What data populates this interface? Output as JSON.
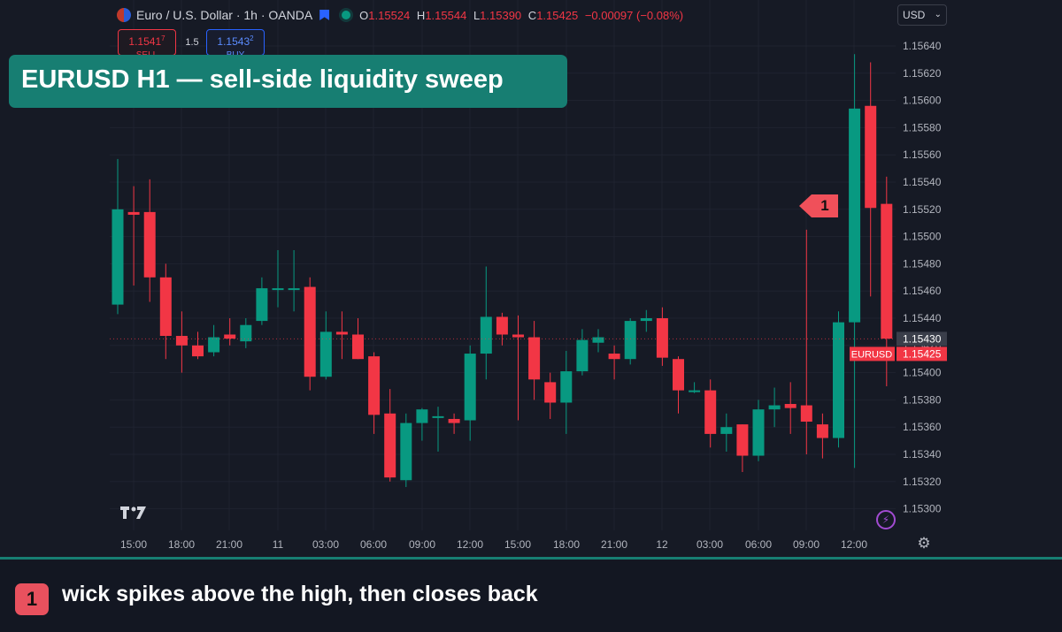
{
  "header": {
    "symbol": "Euro / U.S. Dollar · 1h · OANDA",
    "ohlc": [
      {
        "k": "O",
        "v": "1.15524"
      },
      {
        "k": "H",
        "v": "1.15544"
      },
      {
        "k": "L",
        "v": "1.15390"
      },
      {
        "k": "C",
        "v": "1.15425"
      }
    ],
    "change": "−0.00097 (−0.08%)"
  },
  "trade": {
    "sell_price": "1.1541",
    "sell_sup": "7",
    "sell_label": "SELL",
    "spread": "1.5",
    "buy_price": "1.1543",
    "buy_sup": "2",
    "buy_label": "BUY"
  },
  "currency": "USD",
  "title": "EURUSD H1  —  sell-side liquidity sweep",
  "annotation": {
    "number": "1",
    "text": "wick spikes above the high, then closes back"
  },
  "colors": {
    "up": "#089981",
    "down": "#f23645",
    "accent": "#177e72",
    "badge": "#f0505a"
  },
  "icons": {
    "logo": "tradingview-logo-icon",
    "bolt": "lightning-icon",
    "settings": "gear-icon",
    "bookmark": "bookmark-icon"
  },
  "chart_data": {
    "type": "candlestick",
    "x_ticks": [
      "15:00",
      "18:00",
      "21:00",
      "11",
      "03:00",
      "06:00",
      "09:00",
      "12:00",
      "15:00",
      "18:00",
      "21:00",
      "12",
      "03:00",
      "06:00",
      "09:00",
      "12:00"
    ],
    "y_ticks": [
      "1.15640",
      "1.15620",
      "1.15600",
      "1.15580",
      "1.15560",
      "1.15540",
      "1.15520",
      "1.15500",
      "1.15480",
      "1.15460",
      "1.15440",
      "1.15420",
      "1.15400",
      "1.15380",
      "1.15360",
      "1.15340",
      "1.15320",
      "1.15300"
    ],
    "ylim": [
      1.1529,
      1.1565
    ],
    "current_price_label": "1.15430",
    "last_price_tag": "EURUSD",
    "last_price": "1.15425",
    "candles": [
      {
        "o": 1.1545,
        "h": 1.15557,
        "l": 1.15443,
        "c": 1.1552
      },
      {
        "o": 1.15518,
        "h": 1.15537,
        "l": 1.15464,
        "c": 1.15516
      },
      {
        "o": 1.15518,
        "h": 1.15542,
        "l": 1.15452,
        "c": 1.1547
      },
      {
        "o": 1.1547,
        "h": 1.1548,
        "l": 1.1541,
        "c": 1.15427
      },
      {
        "o": 1.15427,
        "h": 1.15445,
        "l": 1.154,
        "c": 1.1542
      },
      {
        "o": 1.1542,
        "h": 1.1543,
        "l": 1.1541,
        "c": 1.15412
      },
      {
        "o": 1.15415,
        "h": 1.15435,
        "l": 1.15412,
        "c": 1.15426
      },
      {
        "o": 1.15428,
        "h": 1.1544,
        "l": 1.1542,
        "c": 1.15425
      },
      {
        "o": 1.15423,
        "h": 1.1544,
        "l": 1.15418,
        "c": 1.15435
      },
      {
        "o": 1.15438,
        "h": 1.1547,
        "l": 1.15435,
        "c": 1.15462
      },
      {
        "o": 1.15462,
        "h": 1.1549,
        "l": 1.15448,
        "c": 1.15462
      },
      {
        "o": 1.15462,
        "h": 1.1549,
        "l": 1.15445,
        "c": 1.15462
      },
      {
        "o": 1.15463,
        "h": 1.1547,
        "l": 1.15387,
        "c": 1.15397
      },
      {
        "o": 1.15397,
        "h": 1.15445,
        "l": 1.15395,
        "c": 1.1543
      },
      {
        "o": 1.1543,
        "h": 1.15445,
        "l": 1.1541,
        "c": 1.15428
      },
      {
        "o": 1.15428,
        "h": 1.1544,
        "l": 1.1541,
        "c": 1.1541
      },
      {
        "o": 1.15412,
        "h": 1.15415,
        "l": 1.15355,
        "c": 1.15369
      },
      {
        "o": 1.1537,
        "h": 1.15388,
        "l": 1.1532,
        "c": 1.15323
      },
      {
        "o": 1.15321,
        "h": 1.1537,
        "l": 1.15316,
        "c": 1.15363
      },
      {
        "o": 1.15363,
        "h": 1.15374,
        "l": 1.1535,
        "c": 1.15373
      },
      {
        "o": 1.15368,
        "h": 1.15375,
        "l": 1.15342,
        "c": 1.15368
      },
      {
        "o": 1.15366,
        "h": 1.1537,
        "l": 1.15355,
        "c": 1.15363
      },
      {
        "o": 1.15365,
        "h": 1.1542,
        "l": 1.1535,
        "c": 1.15414
      },
      {
        "o": 1.15414,
        "h": 1.15478,
        "l": 1.15395,
        "c": 1.15441
      },
      {
        "o": 1.15441,
        "h": 1.15444,
        "l": 1.1542,
        "c": 1.15428
      },
      {
        "o": 1.15428,
        "h": 1.15442,
        "l": 1.15365,
        "c": 1.15426
      },
      {
        "o": 1.15426,
        "h": 1.15438,
        "l": 1.1538,
        "c": 1.15395
      },
      {
        "o": 1.15393,
        "h": 1.154,
        "l": 1.15366,
        "c": 1.15378
      },
      {
        "o": 1.15378,
        "h": 1.15416,
        "l": 1.15355,
        "c": 1.15401
      },
      {
        "o": 1.15401,
        "h": 1.15432,
        "l": 1.15398,
        "c": 1.15424
      },
      {
        "o": 1.15422,
        "h": 1.15432,
        "l": 1.15415,
        "c": 1.15426
      },
      {
        "o": 1.15414,
        "h": 1.1542,
        "l": 1.15395,
        "c": 1.1541
      },
      {
        "o": 1.1541,
        "h": 1.1544,
        "l": 1.15406,
        "c": 1.15438
      },
      {
        "o": 1.15438,
        "h": 1.15446,
        "l": 1.1543,
        "c": 1.1544
      },
      {
        "o": 1.1544,
        "h": 1.15448,
        "l": 1.15405,
        "c": 1.15411
      },
      {
        "o": 1.1541,
        "h": 1.15412,
        "l": 1.1537,
        "c": 1.15387
      },
      {
        "o": 1.15387,
        "h": 1.15393,
        "l": 1.15385,
        "c": 1.15387
      },
      {
        "o": 1.15387,
        "h": 1.15395,
        "l": 1.15345,
        "c": 1.15355
      },
      {
        "o": 1.15355,
        "h": 1.1537,
        "l": 1.15342,
        "c": 1.1536
      },
      {
        "o": 1.15362,
        "h": 1.15362,
        "l": 1.15327,
        "c": 1.15339
      },
      {
        "o": 1.15339,
        "h": 1.1538,
        "l": 1.15335,
        "c": 1.15373
      },
      {
        "o": 1.15373,
        "h": 1.15389,
        "l": 1.1536,
        "c": 1.15376
      },
      {
        "o": 1.15377,
        "h": 1.15393,
        "l": 1.15355,
        "c": 1.15374
      },
      {
        "o": 1.15376,
        "h": 1.15505,
        "l": 1.1534,
        "c": 1.15364
      },
      {
        "o": 1.15362,
        "h": 1.1537,
        "l": 1.15337,
        "c": 1.15352
      },
      {
        "o": 1.15352,
        "h": 1.15445,
        "l": 1.15345,
        "c": 1.15437
      },
      {
        "o": 1.15437,
        "h": 1.15634,
        "l": 1.1533,
        "c": 1.15594
      },
      {
        "o": 1.15596,
        "h": 1.15628,
        "l": 1.15456,
        "c": 1.15521
      },
      {
        "o": 1.15524,
        "h": 1.15544,
        "l": 1.1539,
        "c": 1.15425
      }
    ]
  }
}
